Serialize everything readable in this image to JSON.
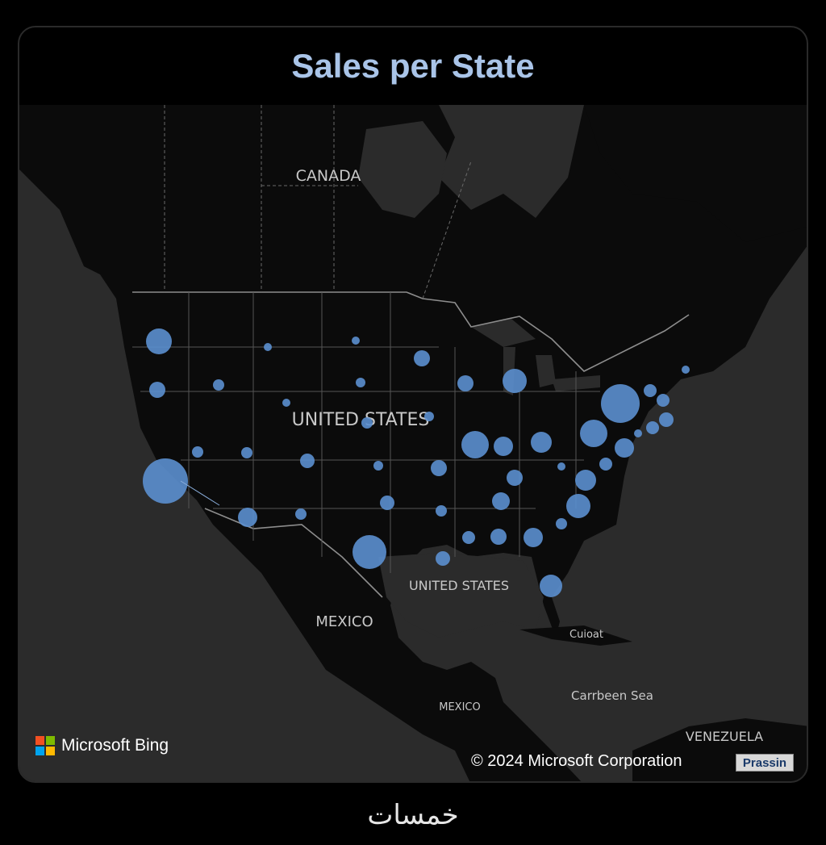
{
  "title": "Sales per State",
  "map": {
    "labels": {
      "canada": "CANADA",
      "united_states": "UNITED STATES",
      "gulf": "UNITED STATES",
      "mexico": "MEXICO",
      "mexico_small": "MEXICO",
      "cuba": "Cuioat",
      "caribbean": "Carrbeen Sea",
      "venezuela": "VENEZUELA"
    },
    "bubble_color": "#5b8fcf",
    "land_color": "#0a0a0a",
    "water_color": "#2b2b2b",
    "border_color": "#9a9a9a"
  },
  "attribution": {
    "provider": "Microsoft Bing",
    "copyright": "© 2024 Microsoft Corporation",
    "badge": "Prassin"
  },
  "footer_mark": "خمسات"
}
